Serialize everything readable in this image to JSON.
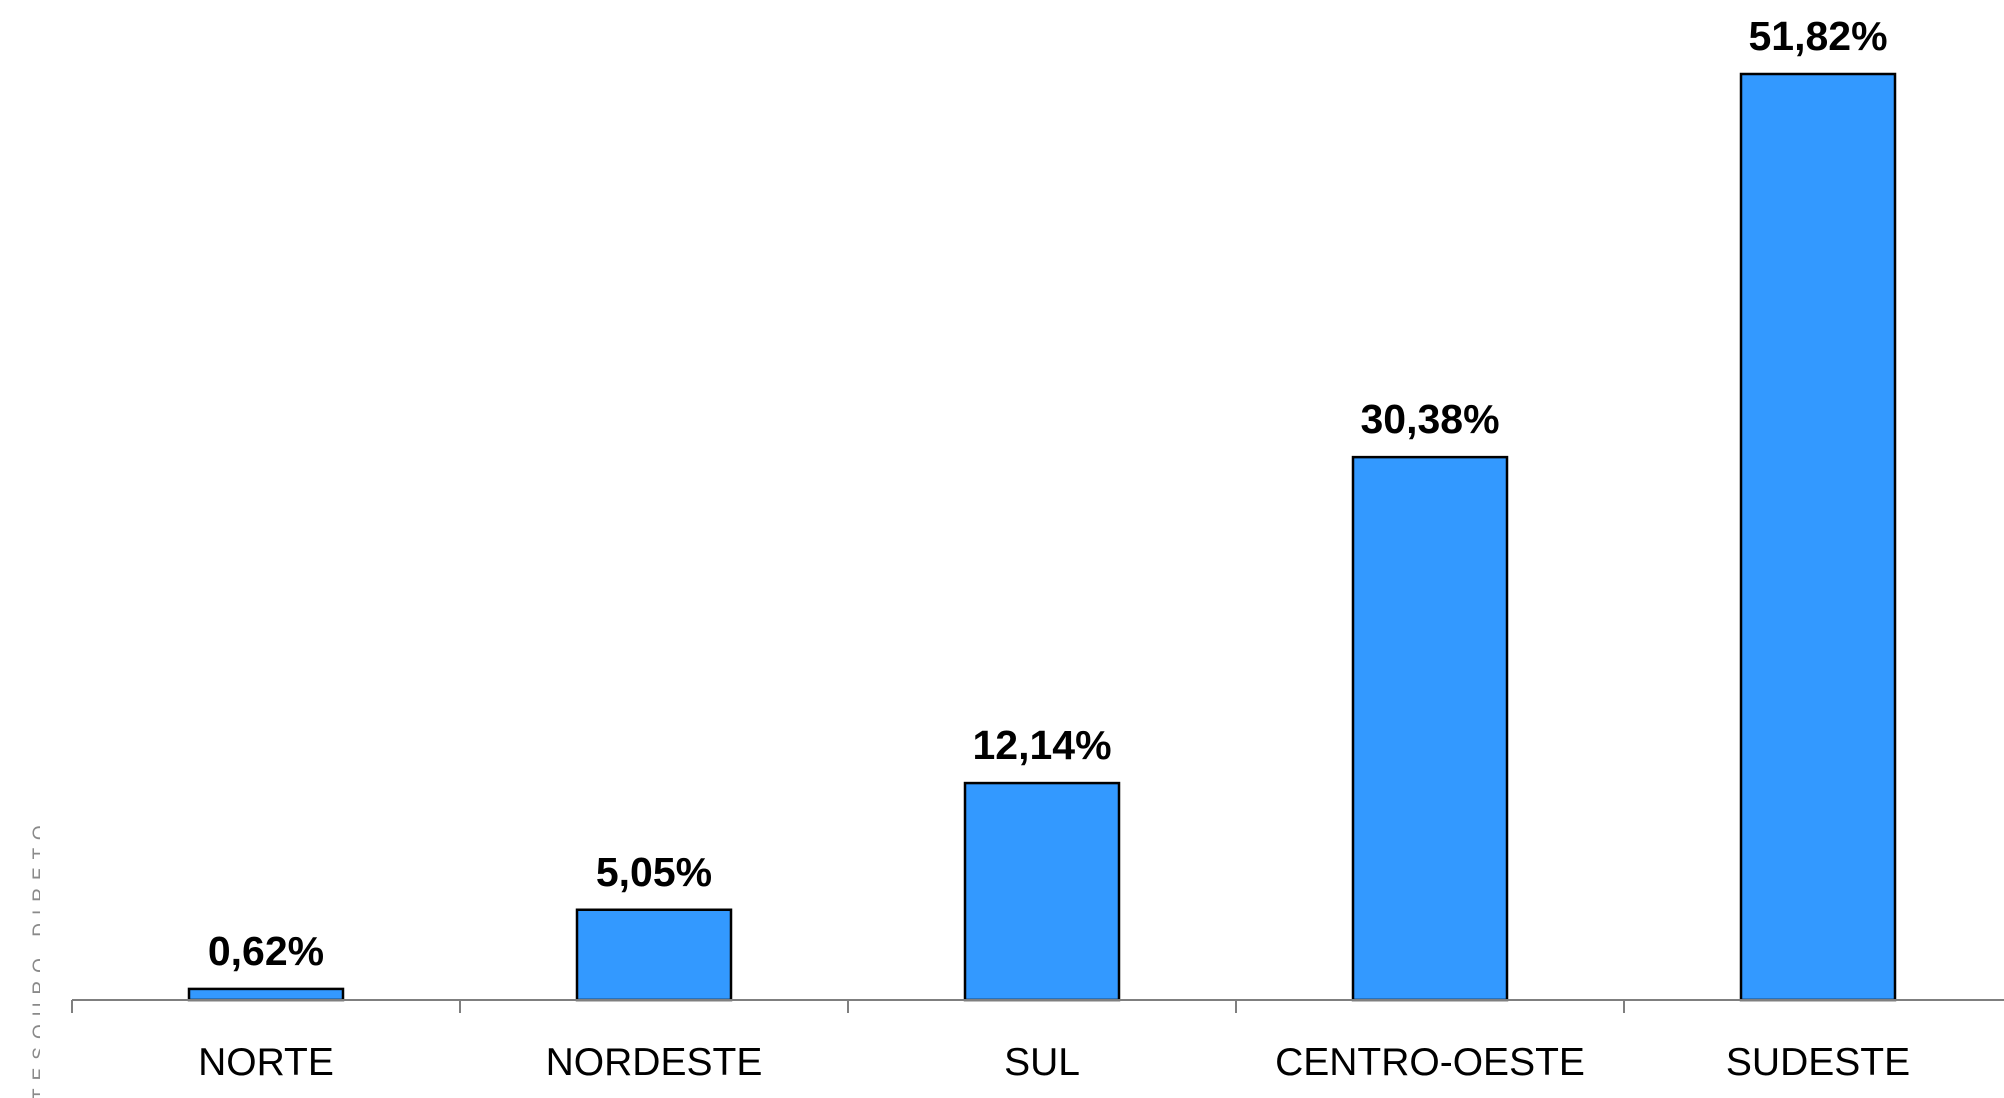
{
  "watermark_text": "TESOURO DIRETO",
  "chart_data": {
    "type": "bar",
    "categories": [
      "NORTE",
      "NORDESTE",
      "SUL",
      "CENTRO-OESTE",
      "SUDESTE"
    ],
    "values": [
      0.62,
      5.05,
      12.14,
      30.38,
      51.82
    ],
    "value_labels": [
      "0,62%",
      "5,05%",
      "12,14%",
      "30,38%",
      "51,82%"
    ],
    "ylim": [
      0,
      51.82
    ],
    "grid": false,
    "legend": "none",
    "bar_color": "#3399ff",
    "bar_outline_color": "#000000"
  }
}
